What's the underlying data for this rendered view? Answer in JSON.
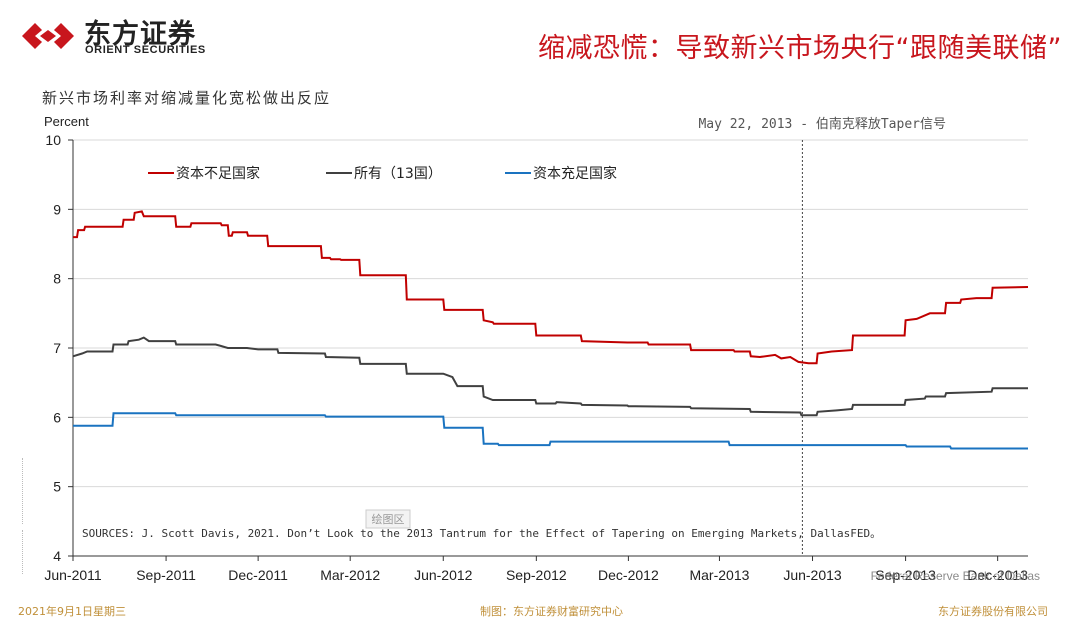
{
  "header": {
    "logo_cn": "东方证券",
    "logo_en": "ORIENT SECURITIES",
    "slide_title": "缩减恐慌：导致新兴市场央行“跟随美联储”"
  },
  "colors": {
    "brand_red": "#c8161d",
    "series_red": "#c00000",
    "series_dark": "#404040",
    "series_blue": "#1a73c0",
    "footer": "#c0903a"
  },
  "icons": {
    "logo": "orient-securities-logo-icon"
  },
  "chart_data": {
    "type": "line",
    "title": "新兴市场利率对缩减量化宽松做出反应",
    "ylabel": "Percent",
    "xlabel": "",
    "ylim": [
      4,
      10
    ],
    "yticks": [
      4,
      5,
      6,
      7,
      8,
      9,
      10
    ],
    "xlim": [
      "2011-06-01",
      "2013-12-31"
    ],
    "xticks": [
      {
        "date": "2011-06-01",
        "label": "Jun-2011"
      },
      {
        "date": "2011-09-01",
        "label": "Sep-2011"
      },
      {
        "date": "2011-12-01",
        "label": "Dec-2011"
      },
      {
        "date": "2012-03-01",
        "label": "Mar-2012"
      },
      {
        "date": "2012-06-01",
        "label": "Jun-2012"
      },
      {
        "date": "2012-09-01",
        "label": "Sep-2012"
      },
      {
        "date": "2012-12-01",
        "label": "Dec-2012"
      },
      {
        "date": "2013-03-01",
        "label": "Mar-2013"
      },
      {
        "date": "2013-06-01",
        "label": "Jun-2013"
      },
      {
        "date": "2013-09-01",
        "label": "Sep-2013"
      },
      {
        "date": "2013-12-01",
        "label": "Dec-2013"
      }
    ],
    "grid": "horizontal",
    "legend_position": "top-left",
    "annotation": {
      "date": "2013-05-22",
      "text": "May 22, 2013 - 伯南克释放Taper信号"
    },
    "source": "SOURCES: J. Scott Davis, 2021. Don’t Look to the 2013 Tantrum for the Effect of Tapering on Emerging Markets, DallasFED。",
    "watermark": "绘图区",
    "overlay_text": "Federal Reserve Bank of Dallas",
    "series": [
      {
        "name": "资本不足国家",
        "color": "#c00000",
        "points": [
          [
            "2011-06-01",
            8.6
          ],
          [
            "2011-06-05",
            8.6
          ],
          [
            "2011-06-06",
            8.7
          ],
          [
            "2011-06-12",
            8.7
          ],
          [
            "2011-06-13",
            8.75
          ],
          [
            "2011-07-20",
            8.75
          ],
          [
            "2011-07-21",
            8.85
          ],
          [
            "2011-07-31",
            8.85
          ],
          [
            "2011-08-01",
            8.95
          ],
          [
            "2011-08-08",
            8.97
          ],
          [
            "2011-08-10",
            8.9
          ],
          [
            "2011-09-10",
            8.9
          ],
          [
            "2011-09-11",
            8.75
          ],
          [
            "2011-09-25",
            8.75
          ],
          [
            "2011-09-26",
            8.8
          ],
          [
            "2011-10-25",
            8.8
          ],
          [
            "2011-10-26",
            8.77
          ],
          [
            "2011-11-01",
            8.77
          ],
          [
            "2011-11-02",
            8.62
          ],
          [
            "2011-11-05",
            8.62
          ],
          [
            "2011-11-06",
            8.67
          ],
          [
            "2011-11-20",
            8.67
          ],
          [
            "2011-11-21",
            8.62
          ],
          [
            "2011-12-10",
            8.62
          ],
          [
            "2011-12-11",
            8.47
          ],
          [
            "2012-02-01",
            8.47
          ],
          [
            "2012-02-02",
            8.3
          ],
          [
            "2012-02-10",
            8.3
          ],
          [
            "2012-02-11",
            8.28
          ],
          [
            "2012-02-20",
            8.28
          ],
          [
            "2012-02-21",
            8.27
          ],
          [
            "2012-03-10",
            8.27
          ],
          [
            "2012-03-11",
            8.05
          ],
          [
            "2012-04-25",
            8.05
          ],
          [
            "2012-04-26",
            7.7
          ],
          [
            "2012-06-01",
            7.7
          ],
          [
            "2012-06-02",
            7.55
          ],
          [
            "2012-07-10",
            7.55
          ],
          [
            "2012-07-11",
            7.4
          ],
          [
            "2012-07-20",
            7.37
          ],
          [
            "2012-07-21",
            7.35
          ],
          [
            "2012-08-31",
            7.35
          ],
          [
            "2012-09-01",
            7.18
          ],
          [
            "2012-10-15",
            7.18
          ],
          [
            "2012-10-16",
            7.1
          ],
          [
            "2012-11-30",
            7.08
          ],
          [
            "2012-12-20",
            7.08
          ],
          [
            "2012-12-21",
            7.05
          ],
          [
            "2013-01-31",
            7.05
          ],
          [
            "2013-02-01",
            6.97
          ],
          [
            "2013-03-15",
            6.97
          ],
          [
            "2013-03-16",
            6.95
          ],
          [
            "2013-03-31",
            6.95
          ],
          [
            "2013-04-01",
            6.88
          ],
          [
            "2013-04-10",
            6.87
          ],
          [
            "2013-04-25",
            6.9
          ],
          [
            "2013-05-01",
            6.85
          ],
          [
            "2013-05-10",
            6.87
          ],
          [
            "2013-05-18",
            6.8
          ],
          [
            "2013-05-28",
            6.78
          ],
          [
            "2013-06-05",
            6.78
          ],
          [
            "2013-06-06",
            6.92
          ],
          [
            "2013-06-20",
            6.95
          ],
          [
            "2013-07-10",
            6.97
          ],
          [
            "2013-07-11",
            7.18
          ],
          [
            "2013-08-31",
            7.18
          ],
          [
            "2013-09-01",
            7.4
          ],
          [
            "2013-09-12",
            7.42
          ],
          [
            "2013-09-25",
            7.5
          ],
          [
            "2013-10-10",
            7.5
          ],
          [
            "2013-10-11",
            7.65
          ],
          [
            "2013-10-25",
            7.65
          ],
          [
            "2013-10-26",
            7.7
          ],
          [
            "2013-11-10",
            7.72
          ],
          [
            "2013-11-25",
            7.72
          ],
          [
            "2013-11-26",
            7.87
          ],
          [
            "2013-12-31",
            7.88
          ]
        ]
      },
      {
        "name": "所有（13国）",
        "color": "#404040",
        "points": [
          [
            "2011-06-01",
            6.88
          ],
          [
            "2011-06-10",
            6.92
          ],
          [
            "2011-06-15",
            6.95
          ],
          [
            "2011-07-10",
            6.95
          ],
          [
            "2011-07-11",
            7.05
          ],
          [
            "2011-07-25",
            7.05
          ],
          [
            "2011-07-26",
            7.1
          ],
          [
            "2011-08-05",
            7.12
          ],
          [
            "2011-08-10",
            7.15
          ],
          [
            "2011-08-15",
            7.1
          ],
          [
            "2011-09-10",
            7.1
          ],
          [
            "2011-09-11",
            7.05
          ],
          [
            "2011-10-20",
            7.05
          ],
          [
            "2011-10-25",
            7.03
          ],
          [
            "2011-11-01",
            7.0
          ],
          [
            "2011-11-20",
            7.0
          ],
          [
            "2011-12-01",
            6.98
          ],
          [
            "2011-12-20",
            6.98
          ],
          [
            "2011-12-21",
            6.93
          ],
          [
            "2012-02-05",
            6.92
          ],
          [
            "2012-02-06",
            6.87
          ],
          [
            "2012-03-10",
            6.86
          ],
          [
            "2012-03-11",
            6.77
          ],
          [
            "2012-04-25",
            6.77
          ],
          [
            "2012-04-26",
            6.63
          ],
          [
            "2012-06-01",
            6.63
          ],
          [
            "2012-06-10",
            6.58
          ],
          [
            "2012-06-15",
            6.45
          ],
          [
            "2012-07-10",
            6.45
          ],
          [
            "2012-07-11",
            6.3
          ],
          [
            "2012-07-20",
            6.25
          ],
          [
            "2012-08-31",
            6.25
          ],
          [
            "2012-09-01",
            6.2
          ],
          [
            "2012-09-20",
            6.2
          ],
          [
            "2012-09-21",
            6.22
          ],
          [
            "2012-10-15",
            6.2
          ],
          [
            "2012-10-16",
            6.18
          ],
          [
            "2012-11-30",
            6.17
          ],
          [
            "2012-12-01",
            6.16
          ],
          [
            "2013-01-31",
            6.15
          ],
          [
            "2013-02-01",
            6.13
          ],
          [
            "2013-03-31",
            6.12
          ],
          [
            "2013-04-01",
            6.08
          ],
          [
            "2013-05-20",
            6.07
          ],
          [
            "2013-05-21",
            6.03
          ],
          [
            "2013-06-05",
            6.03
          ],
          [
            "2013-06-06",
            6.08
          ],
          [
            "2013-06-25",
            6.1
          ],
          [
            "2013-07-10",
            6.12
          ],
          [
            "2013-07-11",
            6.18
          ],
          [
            "2013-08-31",
            6.18
          ],
          [
            "2013-09-01",
            6.25
          ],
          [
            "2013-09-20",
            6.27
          ],
          [
            "2013-09-21",
            6.3
          ],
          [
            "2013-10-10",
            6.3
          ],
          [
            "2013-10-11",
            6.35
          ],
          [
            "2013-11-25",
            6.37
          ],
          [
            "2013-11-26",
            6.42
          ],
          [
            "2013-12-31",
            6.42
          ]
        ]
      },
      {
        "name": "资本充足国家",
        "color": "#1a73c0",
        "points": [
          [
            "2011-06-01",
            5.88
          ],
          [
            "2011-07-10",
            5.88
          ],
          [
            "2011-07-11",
            6.06
          ],
          [
            "2011-09-10",
            6.06
          ],
          [
            "2011-09-11",
            6.03
          ],
          [
            "2012-02-05",
            6.03
          ],
          [
            "2012-02-06",
            6.01
          ],
          [
            "2012-06-01",
            6.01
          ],
          [
            "2012-06-02",
            5.85
          ],
          [
            "2012-07-10",
            5.85
          ],
          [
            "2012-07-11",
            5.62
          ],
          [
            "2012-07-25",
            5.62
          ],
          [
            "2012-07-26",
            5.6
          ],
          [
            "2012-09-14",
            5.6
          ],
          [
            "2012-09-15",
            5.65
          ],
          [
            "2013-03-10",
            5.65
          ],
          [
            "2013-03-11",
            5.6
          ],
          [
            "2013-09-01",
            5.6
          ],
          [
            "2013-09-02",
            5.58
          ],
          [
            "2013-10-15",
            5.58
          ],
          [
            "2013-10-16",
            5.55
          ],
          [
            "2013-12-31",
            5.55
          ]
        ]
      }
    ]
  },
  "footer": {
    "date": "2021年9月1日星期三",
    "maker": "制图：东方证券财富研究中心",
    "company": "东方证券股份有限公司"
  }
}
